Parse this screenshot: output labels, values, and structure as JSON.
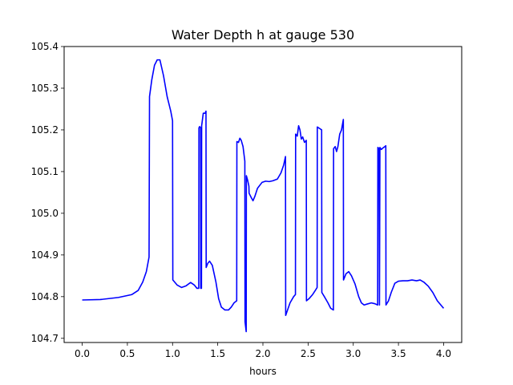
{
  "chart_data": {
    "type": "line",
    "title": "Water Depth h at gauge 530",
    "xlabel": "hours",
    "ylabel": "",
    "xlim": [
      -0.2,
      4.2
    ],
    "ylim": [
      104.69,
      105.4
    ],
    "grid": false,
    "legend": "none",
    "xticks": [
      0.0,
      0.5,
      1.0,
      1.5,
      2.0,
      2.5,
      3.0,
      3.5,
      4.0
    ],
    "xtick_labels": [
      "0.0",
      "0.5",
      "1.0",
      "1.5",
      "2.0",
      "2.5",
      "3.0",
      "3.5",
      "4.0"
    ],
    "yticks": [
      104.7,
      104.8,
      104.9,
      105.0,
      105.1,
      105.2,
      105.3,
      105.4
    ],
    "ytick_labels": [
      "104.7",
      "104.8",
      "104.9",
      "105.0",
      "105.1",
      "105.2",
      "105.3",
      "105.4"
    ],
    "series": [
      {
        "color": "#0000ff",
        "points": [
          [
            0.0,
            104.792
          ],
          [
            0.2,
            104.793
          ],
          [
            0.4,
            104.798
          ],
          [
            0.55,
            104.805
          ],
          [
            0.62,
            104.815
          ],
          [
            0.67,
            104.835
          ],
          [
            0.71,
            104.86
          ],
          [
            0.74,
            104.895
          ],
          [
            0.745,
            105.28
          ],
          [
            0.77,
            105.32
          ],
          [
            0.8,
            105.355
          ],
          [
            0.83,
            105.368
          ],
          [
            0.86,
            105.368
          ],
          [
            0.9,
            105.33
          ],
          [
            0.94,
            105.28
          ],
          [
            0.98,
            105.245
          ],
          [
            1.0,
            105.222
          ],
          [
            1.003,
            104.84
          ],
          [
            1.05,
            104.828
          ],
          [
            1.1,
            104.822
          ],
          [
            1.15,
            104.826
          ],
          [
            1.2,
            104.834
          ],
          [
            1.24,
            104.828
          ],
          [
            1.27,
            104.82
          ],
          [
            1.28,
            104.82
          ],
          [
            1.29,
            104.82
          ],
          [
            1.292,
            105.205
          ],
          [
            1.3,
            105.208
          ],
          [
            1.31,
            105.205
          ],
          [
            1.312,
            104.82
          ],
          [
            1.32,
            104.82
          ],
          [
            1.322,
            105.21
          ],
          [
            1.34,
            105.24
          ],
          [
            1.36,
            105.24
          ],
          [
            1.37,
            105.245
          ],
          [
            1.372,
            104.87
          ],
          [
            1.39,
            104.88
          ],
          [
            1.41,
            104.885
          ],
          [
            1.44,
            104.875
          ],
          [
            1.48,
            104.835
          ],
          [
            1.51,
            104.795
          ],
          [
            1.54,
            104.775
          ],
          [
            1.58,
            104.768
          ],
          [
            1.62,
            104.768
          ],
          [
            1.65,
            104.775
          ],
          [
            1.68,
            104.785
          ],
          [
            1.71,
            104.79
          ],
          [
            1.712,
            105.172
          ],
          [
            1.73,
            105.17
          ],
          [
            1.745,
            105.18
          ],
          [
            1.76,
            105.175
          ],
          [
            1.78,
            105.16
          ],
          [
            1.8,
            105.125
          ],
          [
            1.802,
            104.74
          ],
          [
            1.815,
            104.716
          ],
          [
            1.817,
            105.09
          ],
          [
            1.83,
            105.08
          ],
          [
            1.845,
            105.065
          ],
          [
            1.847,
            105.048
          ],
          [
            1.87,
            105.038
          ],
          [
            1.89,
            105.03
          ],
          [
            1.91,
            105.04
          ],
          [
            1.94,
            105.06
          ],
          [
            1.99,
            105.074
          ],
          [
            2.03,
            105.077
          ],
          [
            2.07,
            105.076
          ],
          [
            2.11,
            105.078
          ],
          [
            2.16,
            105.082
          ],
          [
            2.2,
            105.097
          ],
          [
            2.23,
            105.116
          ],
          [
            2.25,
            105.136
          ],
          [
            2.252,
            104.755
          ],
          [
            2.3,
            104.785
          ],
          [
            2.34,
            104.8
          ],
          [
            2.36,
            104.805
          ],
          [
            2.362,
            105.19
          ],
          [
            2.38,
            105.185
          ],
          [
            2.395,
            105.21
          ],
          [
            2.41,
            105.2
          ],
          [
            2.425,
            105.178
          ],
          [
            2.44,
            105.183
          ],
          [
            2.46,
            105.17
          ],
          [
            2.48,
            105.175
          ],
          [
            2.482,
            104.79
          ],
          [
            2.51,
            104.795
          ],
          [
            2.55,
            104.805
          ],
          [
            2.58,
            104.815
          ],
          [
            2.6,
            104.822
          ],
          [
            2.602,
            105.207
          ],
          [
            2.63,
            105.203
          ],
          [
            2.65,
            105.2
          ],
          [
            2.652,
            104.81
          ],
          [
            2.68,
            104.8
          ],
          [
            2.72,
            104.785
          ],
          [
            2.75,
            104.772
          ],
          [
            2.78,
            104.768
          ],
          [
            2.782,
            105.155
          ],
          [
            2.8,
            105.16
          ],
          [
            2.815,
            105.148
          ],
          [
            2.83,
            105.16
          ],
          [
            2.85,
            105.19
          ],
          [
            2.87,
            105.2
          ],
          [
            2.89,
            105.225
          ],
          [
            2.892,
            104.84
          ],
          [
            2.92,
            104.855
          ],
          [
            2.95,
            104.86
          ],
          [
            2.98,
            104.85
          ],
          [
            3.02,
            104.83
          ],
          [
            3.06,
            104.8
          ],
          [
            3.09,
            104.785
          ],
          [
            3.12,
            104.78
          ],
          [
            3.15,
            104.782
          ],
          [
            3.2,
            104.785
          ],
          [
            3.24,
            104.783
          ],
          [
            3.27,
            104.78
          ],
          [
            3.272,
            105.158
          ],
          [
            3.285,
            105.155
          ],
          [
            3.29,
            104.78
          ],
          [
            3.295,
            105.158
          ],
          [
            3.31,
            105.153
          ],
          [
            3.33,
            105.157
          ],
          [
            3.35,
            105.16
          ],
          [
            3.36,
            105.162
          ],
          [
            3.362,
            104.78
          ],
          [
            3.39,
            104.79
          ],
          [
            3.42,
            104.81
          ],
          [
            3.46,
            104.832
          ],
          [
            3.5,
            104.837
          ],
          [
            3.55,
            104.838
          ],
          [
            3.6,
            104.838
          ],
          [
            3.65,
            104.84
          ],
          [
            3.7,
            104.838
          ],
          [
            3.74,
            104.84
          ],
          [
            3.78,
            104.835
          ],
          [
            3.83,
            104.825
          ],
          [
            3.88,
            104.81
          ],
          [
            3.93,
            104.79
          ],
          [
            4.0,
            104.772
          ]
        ]
      }
    ]
  }
}
